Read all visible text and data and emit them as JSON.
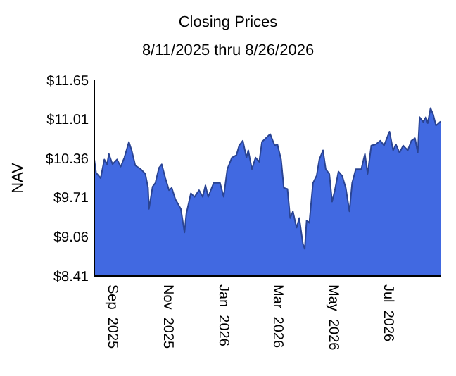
{
  "chart_data": {
    "type": "area",
    "title": "Closing Prices",
    "subtitle": "8/11/2025 thru 8/26/2026",
    "ylabel": "NAV",
    "xlim": [
      "2025-08-11",
      "2026-08-26"
    ],
    "xticks": [
      {
        "value": "2025-09-01",
        "label": "Sep  2025"
      },
      {
        "value": "2025-11-01",
        "label": "Nov  2025"
      },
      {
        "value": "2026-01-01",
        "label": "Jan  2026"
      },
      {
        "value": "2026-03-01",
        "label": "Mar  2026"
      },
      {
        "value": "2026-05-01",
        "label": "May  2026"
      },
      {
        "value": "2026-07-01",
        "label": "Jul  2026"
      }
    ],
    "ylim": [
      8.41,
      11.65
    ],
    "yticks": [
      {
        "value": 8.41,
        "label": "$8.41"
      },
      {
        "value": 9.06,
        "label": "$9.06"
      },
      {
        "value": 9.71,
        "label": "$9.71"
      },
      {
        "value": 10.36,
        "label": "$10.36"
      },
      {
        "value": 11.01,
        "label": "$11.01"
      },
      {
        "value": 11.65,
        "label": "$11.65"
      }
    ],
    "x": [
      "2025-08-11",
      "2025-08-13",
      "2025-08-18",
      "2025-08-22",
      "2025-08-25",
      "2025-08-27",
      "2025-08-31",
      "2025-09-05",
      "2025-09-09",
      "2025-09-13",
      "2025-09-18",
      "2025-09-21",
      "2025-09-25",
      "2025-10-01",
      "2025-10-06",
      "2025-10-09",
      "2025-10-10",
      "2025-10-14",
      "2025-10-17",
      "2025-10-21",
      "2025-10-24",
      "2025-10-28",
      "2025-11-01",
      "2025-11-04",
      "2025-11-08",
      "2025-11-14",
      "2025-11-18",
      "2025-11-20",
      "2025-11-25",
      "2025-11-29",
      "2025-12-04",
      "2025-12-08",
      "2025-12-11",
      "2025-12-14",
      "2025-12-20",
      "2025-12-27",
      "2025-12-31",
      "2026-01-04",
      "2026-01-09",
      "2026-01-14",
      "2026-01-17",
      "2026-01-21",
      "2026-01-25",
      "2026-01-27",
      "2026-01-31",
      "2026-02-04",
      "2026-02-08",
      "2026-02-11",
      "2026-02-20",
      "2026-02-25",
      "2026-02-28",
      "2026-03-04",
      "2026-03-07",
      "2026-03-11",
      "2026-03-14",
      "2026-03-17",
      "2026-03-21",
      "2026-03-24",
      "2026-03-28",
      "2026-03-30",
      "2026-04-01",
      "2026-04-04",
      "2026-04-08",
      "2026-04-12",
      "2026-04-15",
      "2026-04-19",
      "2026-04-22",
      "2026-04-26",
      "2026-04-29",
      "2026-05-02",
      "2026-05-06",
      "2026-05-10",
      "2026-05-14",
      "2026-05-18",
      "2026-05-21",
      "2026-05-25",
      "2026-05-31",
      "2026-06-04",
      "2026-06-07",
      "2026-06-11",
      "2026-06-16",
      "2026-06-21",
      "2026-06-25",
      "2026-07-01",
      "2026-07-05",
      "2026-07-08",
      "2026-07-12",
      "2026-07-16",
      "2026-07-21",
      "2026-07-25",
      "2026-07-29",
      "2026-08-01",
      "2026-08-03",
      "2026-08-07",
      "2026-08-10",
      "2026-08-12",
      "2026-08-15",
      "2026-08-18",
      "2026-08-21",
      "2026-08-24",
      "2026-08-26"
    ],
    "series": [
      {
        "color": "#4169e1",
        "values": [
          10.34,
          10.12,
          10.03,
          10.34,
          10.26,
          10.43,
          10.26,
          10.34,
          10.22,
          10.37,
          10.63,
          10.49,
          10.24,
          10.18,
          10.1,
          9.87,
          9.52,
          9.89,
          9.95,
          10.2,
          10.26,
          10.03,
          9.83,
          9.87,
          9.68,
          9.52,
          9.13,
          9.44,
          9.78,
          9.72,
          9.83,
          9.72,
          9.91,
          9.72,
          9.95,
          9.95,
          9.72,
          10.18,
          10.37,
          10.41,
          10.57,
          10.65,
          10.37,
          10.49,
          10.18,
          10.37,
          10.3,
          10.63,
          10.76,
          10.57,
          10.59,
          10.34,
          9.87,
          9.85,
          9.37,
          9.48,
          9.21,
          9.37,
          8.94,
          8.86,
          9.33,
          9.29,
          9.95,
          10.07,
          10.34,
          10.49,
          10.18,
          10.1,
          9.64,
          9.83,
          10.14,
          10.07,
          9.87,
          9.48,
          9.95,
          10.18,
          10.18,
          10.43,
          10.1,
          10.57,
          10.59,
          10.65,
          10.57,
          10.8,
          10.49,
          10.59,
          10.45,
          10.57,
          10.49,
          10.65,
          10.69,
          10.45,
          11.04,
          10.96,
          11.04,
          10.94,
          11.19,
          11.08,
          10.9,
          10.94,
          10.97
        ]
      }
    ]
  }
}
